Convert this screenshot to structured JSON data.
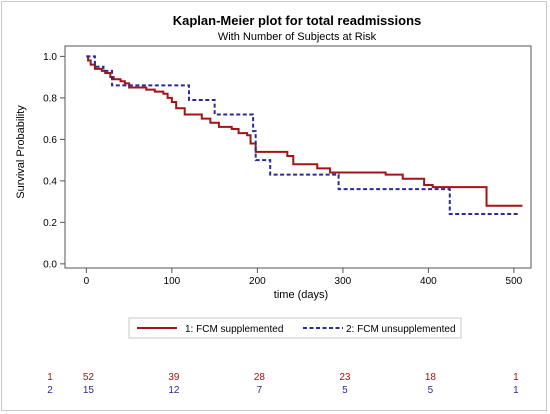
{
  "colors": {
    "series1": "#a31515",
    "series2": "#2a2a9c",
    "axis": "#555555",
    "frame": "#c9c9c9"
  },
  "chart_data": {
    "type": "line",
    "step": true,
    "title": "Kaplan-Meier plot for total readmissions",
    "subtitle": "With Number of Subjects at Risk",
    "xlabel": "time (days)",
    "ylabel": "Survival Probability",
    "xlim": [
      -25,
      520
    ],
    "ylim": [
      -0.02,
      1.05
    ],
    "xticks": [
      0,
      100,
      200,
      300,
      400,
      500
    ],
    "yticks": [
      0.0,
      0.2,
      0.4,
      0.6,
      0.8,
      1.0
    ],
    "ytick_labels": [
      "0.0",
      "0.2",
      "0.4",
      "0.6",
      "0.8",
      "1.0"
    ],
    "grid": false,
    "legend_position": "bottom",
    "series": [
      {
        "name": "1: FCM supplemented",
        "style": "solid",
        "points": [
          [
            0,
            1.0
          ],
          [
            2,
            0.98
          ],
          [
            5,
            0.96
          ],
          [
            10,
            0.94
          ],
          [
            18,
            0.93
          ],
          [
            22,
            0.92
          ],
          [
            28,
            0.9
          ],
          [
            32,
            0.89
          ],
          [
            40,
            0.88
          ],
          [
            45,
            0.87
          ],
          [
            50,
            0.85
          ],
          [
            70,
            0.84
          ],
          [
            80,
            0.83
          ],
          [
            90,
            0.82
          ],
          [
            95,
            0.8
          ],
          [
            100,
            0.78
          ],
          [
            105,
            0.75
          ],
          [
            115,
            0.72
          ],
          [
            135,
            0.7
          ],
          [
            145,
            0.68
          ],
          [
            155,
            0.66
          ],
          [
            170,
            0.65
          ],
          [
            178,
            0.63
          ],
          [
            188,
            0.62
          ],
          [
            192,
            0.58
          ],
          [
            198,
            0.54
          ],
          [
            235,
            0.52
          ],
          [
            242,
            0.48
          ],
          [
            270,
            0.46
          ],
          [
            285,
            0.44
          ],
          [
            350,
            0.43
          ],
          [
            370,
            0.41
          ],
          [
            395,
            0.38
          ],
          [
            405,
            0.37
          ],
          [
            468,
            0.28
          ],
          [
            510,
            0.28
          ]
        ]
      },
      {
        "name": "2: FCM unsupplemented",
        "style": "dashed",
        "points": [
          [
            0,
            1.0
          ],
          [
            10,
            0.95
          ],
          [
            20,
            0.93
          ],
          [
            30,
            0.86
          ],
          [
            60,
            0.86
          ],
          [
            120,
            0.79
          ],
          [
            150,
            0.72
          ],
          [
            195,
            0.64
          ],
          [
            198,
            0.5
          ],
          [
            215,
            0.43
          ],
          [
            295,
            0.36
          ],
          [
            425,
            0.24
          ],
          [
            505,
            0.24
          ]
        ]
      }
    ],
    "at_risk": {
      "times": [
        0,
        100,
        200,
        300,
        400,
        500
      ],
      "rows": [
        {
          "label": "1",
          "values": [
            "52",
            "39",
            "28",
            "23",
            "18",
            "1"
          ]
        },
        {
          "label": "2",
          "values": [
            "15",
            "12",
            "7",
            "5",
            "5",
            "1"
          ]
        }
      ]
    }
  }
}
